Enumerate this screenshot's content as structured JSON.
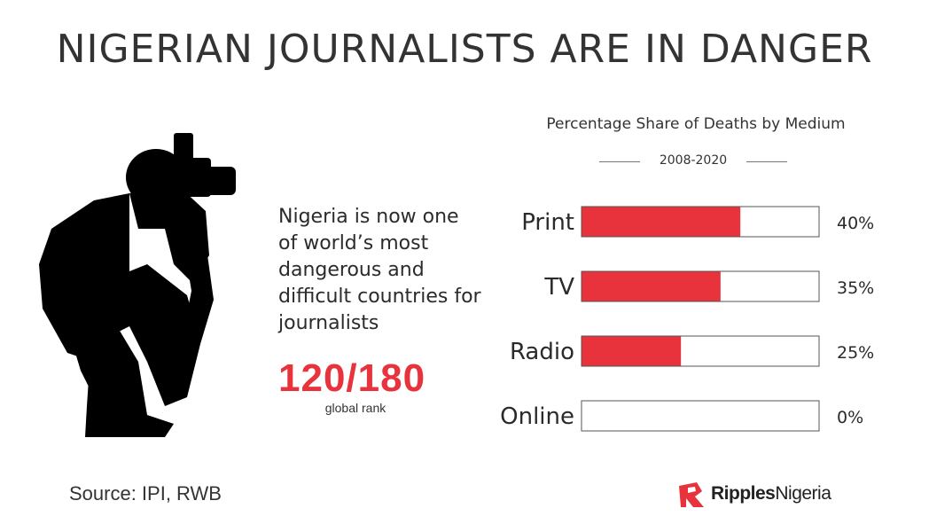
{
  "headline": "NIGERIAN JOURNALISTS ARE IN DANGER",
  "blurb": "Nigeria is now one of world’s most dangerous and difficult countries for journalists",
  "rank": {
    "value": "120/180",
    "label": "global rank"
  },
  "source": "Source: IPI, RWB",
  "brand": {
    "part1": "Ripples",
    "part2": "Nigeria"
  },
  "colors": {
    "accent": "#e8333d",
    "bar_border": "#555555",
    "text": "#333333"
  },
  "icons": {
    "photographer": "photographer-silhouette-icon",
    "logo": "ripples-logo-icon"
  },
  "chart_data": {
    "type": "bar",
    "orientation": "horizontal",
    "title": "Percentage Share of Deaths by Medium",
    "subtitle": "2008-2020",
    "categories": [
      "Print",
      "TV",
      "Radio",
      "Online"
    ],
    "values": [
      40,
      35,
      25,
      0
    ],
    "value_labels": [
      "40%",
      "35%",
      "25%",
      "0%"
    ],
    "xlim": [
      0,
      100
    ],
    "grid": false,
    "legend": "none"
  }
}
